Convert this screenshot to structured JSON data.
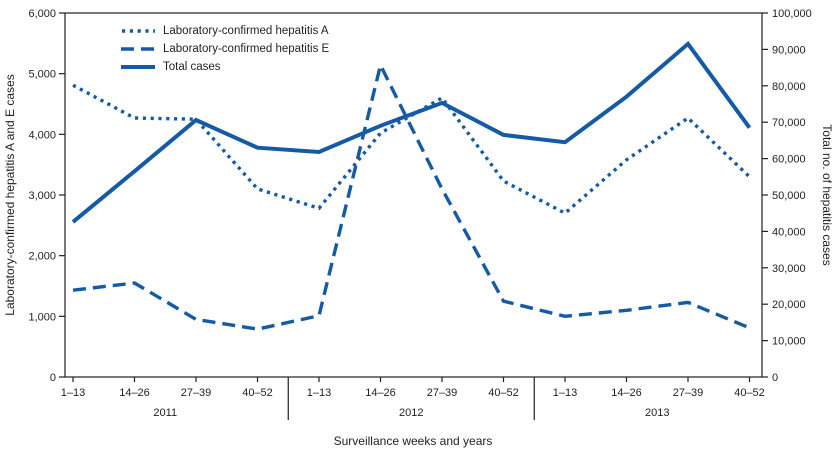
{
  "chart_data": {
    "type": "line",
    "xlabel": "Surveillance weeks and years",
    "ylabel_left": "Laboratory-confirmed hepatitis A and E cases",
    "ylabel_right": "Total no. of hepatitis cases",
    "ylim_left": [
      0,
      6000
    ],
    "ylim_right": [
      0,
      100000
    ],
    "ytick_step_left": 1000,
    "ytick_step_right": 10000,
    "yticks_left": [
      "0",
      "1,000",
      "2,000",
      "3,000",
      "4,000",
      "5,000",
      "6,000"
    ],
    "yticks_right": [
      "0",
      "10,000",
      "20,000",
      "30,000",
      "40,000",
      "50,000",
      "60,000",
      "70,000",
      "80,000",
      "90,000",
      "100,000"
    ],
    "categories": [
      "1–13",
      "14–26",
      "27–39",
      "40–52",
      "1–13",
      "14–26",
      "27–39",
      "40–52",
      "1–13",
      "14–26",
      "27–39",
      "40–52"
    ],
    "year_groups": [
      {
        "label": "2011",
        "span": [
          0,
          3
        ]
      },
      {
        "label": "2012",
        "span": [
          4,
          7
        ]
      },
      {
        "label": "2013",
        "span": [
          8,
          11
        ]
      }
    ],
    "series": [
      {
        "name": "Laboratory-confirmed hepatitis A",
        "style": "dotted",
        "axis": "left",
        "values": [
          4810,
          4270,
          4250,
          3100,
          2780,
          4020,
          4600,
          3230,
          2700,
          3580,
          4270,
          3300
        ]
      },
      {
        "name": "Laboratory-confirmed hepatitis E",
        "style": "dashed",
        "axis": "left",
        "values": [
          1430,
          1550,
          950,
          790,
          1010,
          5140,
          3100,
          1250,
          1000,
          1100,
          1230,
          810
        ]
      },
      {
        "name": "Total cases",
        "style": "solid",
        "axis": "right",
        "values": [
          42600,
          56500,
          70600,
          63000,
          61800,
          69000,
          75300,
          66500,
          64500,
          77000,
          91500,
          68500
        ]
      }
    ],
    "legend_position": "top-left",
    "line_color": "#145aa5",
    "axis_color": "#231f20",
    "grid": false
  }
}
